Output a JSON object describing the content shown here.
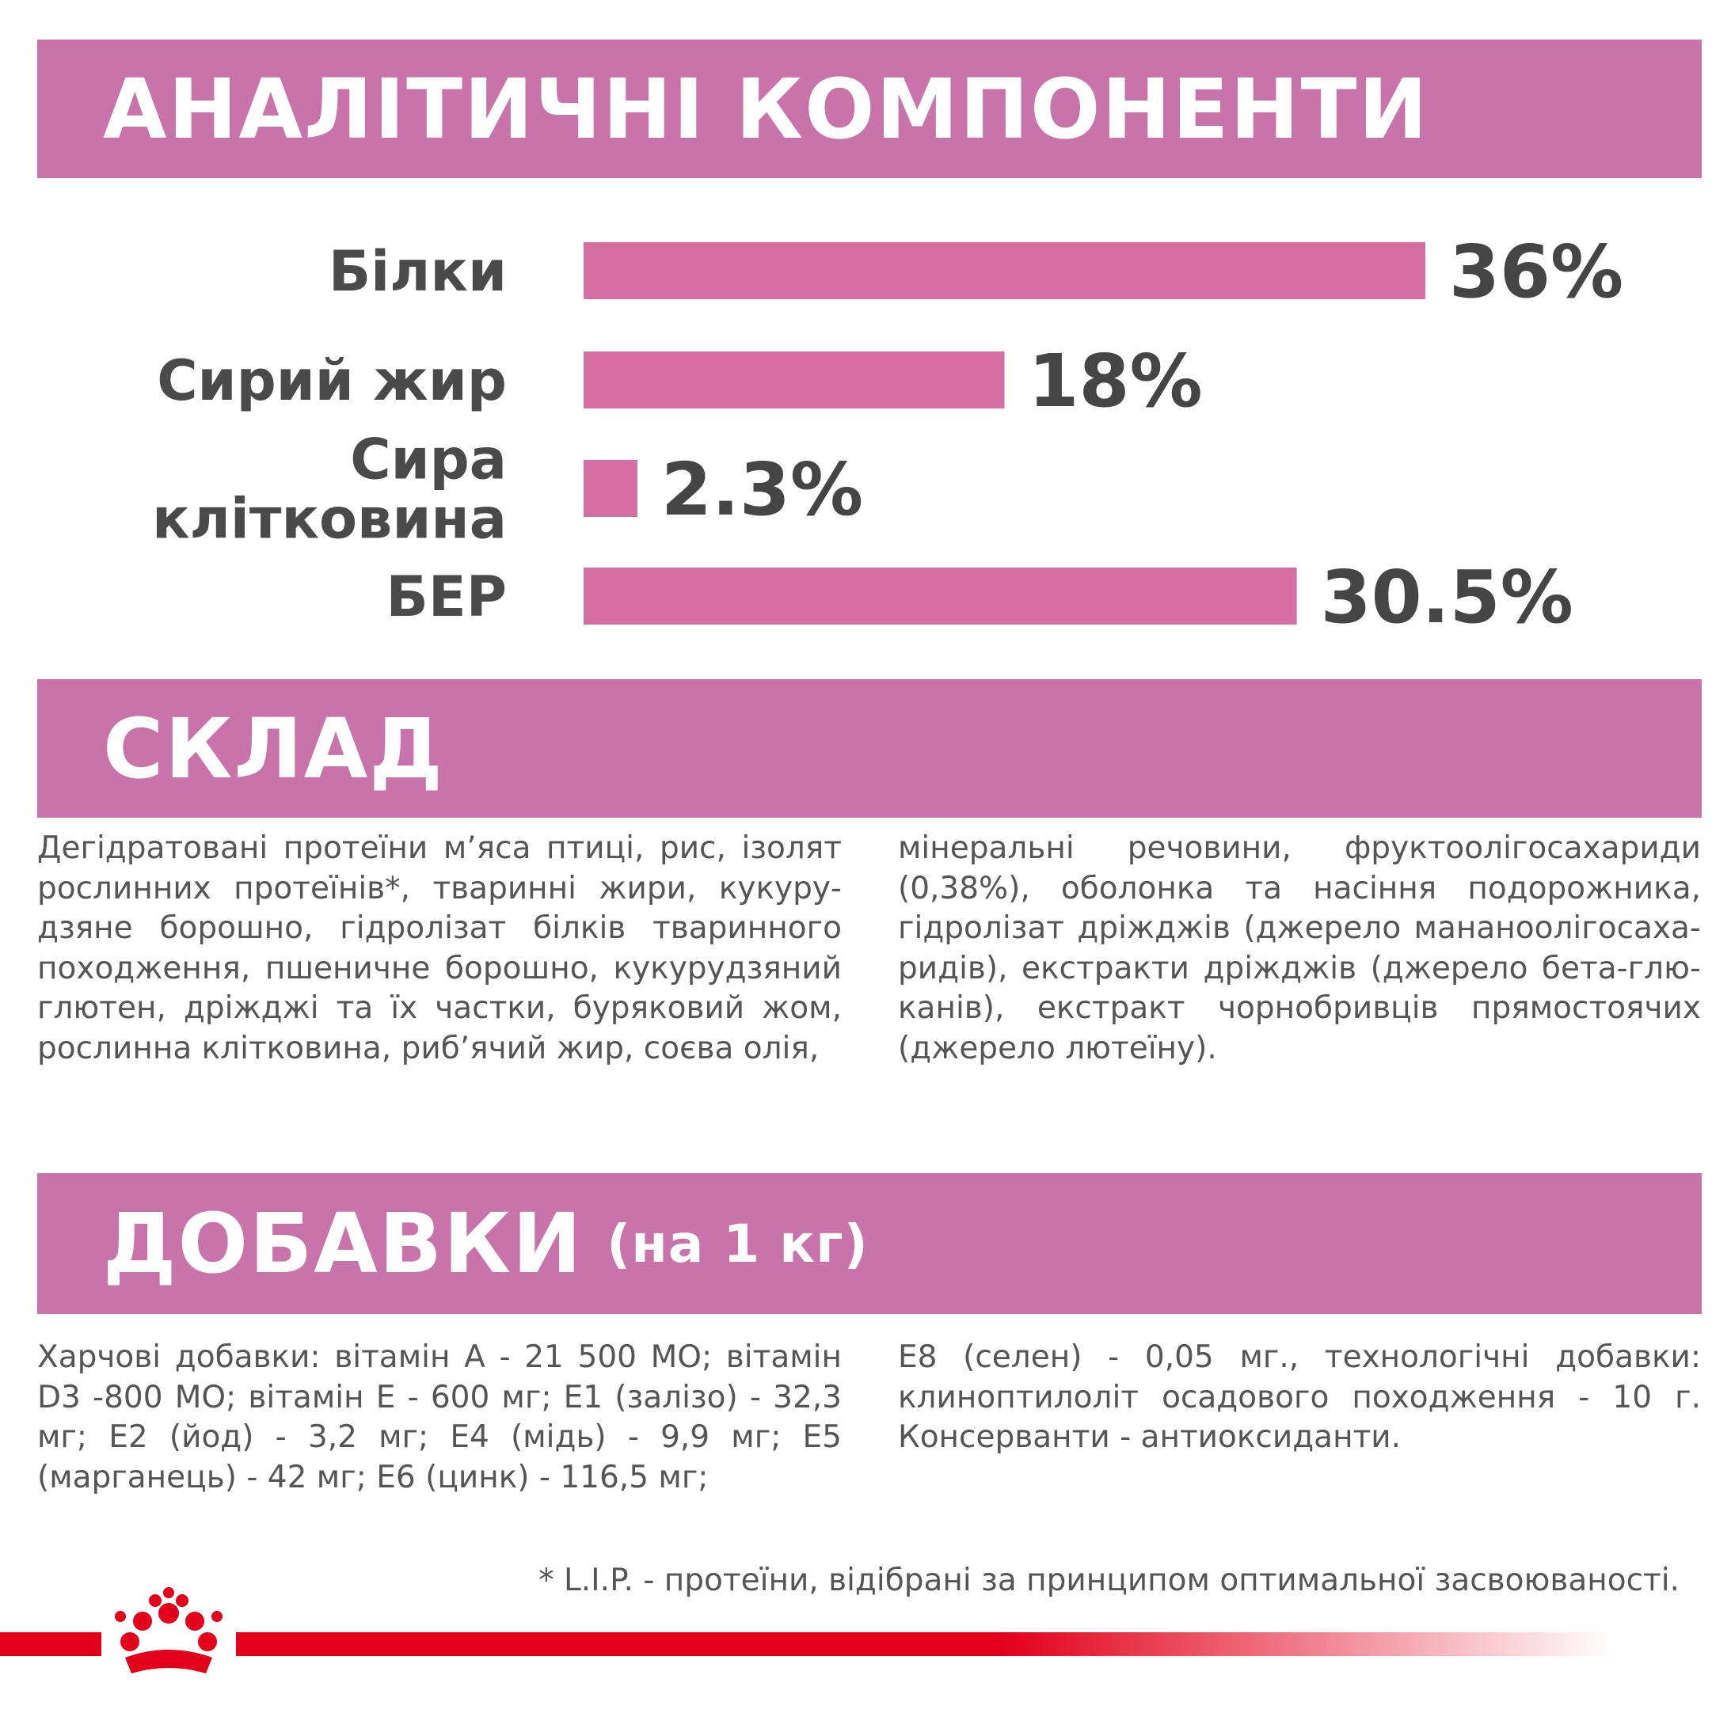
{
  "sections": {
    "analytical_title": "АНАЛІТИЧНІ КОМПОНЕНТИ",
    "composition_title": "СКЛАД",
    "additives_title": "ДОБАВКИ",
    "additives_subtitle": "(на 1 кг)"
  },
  "chart_data": {
    "type": "bar",
    "orientation": "horizontal",
    "categories": [
      [
        "Білки"
      ],
      [
        "Сирий жир"
      ],
      [
        "Сира",
        "клітковина"
      ],
      [
        "БЕР"
      ]
    ],
    "values": [
      36,
      18,
      2.3,
      30.5
    ],
    "value_labels": [
      "36%",
      "18%",
      "2.3%",
      "30.5%"
    ],
    "unit": "%",
    "xlim": [
      0,
      36
    ],
    "grid": false,
    "bar_color": "#d56fa3"
  },
  "composition": {
    "left": "Дегідратовані протеїни м’яса птиці, рис, ізолят рослинних протеїнів*, тваринні жири, кукуру- дзяне борошно, гідролізат білків тваринного походження, пшеничне борошно, кукурудзяний глютен, дріжджі та їх частки, буряковий жом, рослинна клітковина, риб’ячий жир, соєва олія,",
    "right": "мінеральні речовини, фруктоолігосахариди (0,38%), оболонка та насіння подорожника, гідролізат дріжджів (джерело мананоолігосаха- ридів), екстракти дріжджів (джерело бета-глю- канів), екстракт чорнобривців прямостоячих (джерело лютеїну)."
  },
  "additives": {
    "left": "Харчові добавки: вітамін А - 21 500 МО; вітамін D3 -800 МО; вітамін Е - 600 мг; Е1 (залізо) - 32,3 мг; Е2 (йод) - 3,2 мг; Е4 (мідь) - 9,9 мг; Е5 (марганець) - 42 мг; Е6 (цинк) - 116,5 мг;",
    "right": "Е8 (селен) - 0,05 мг., технологічні добавки: клиноптилоліт осадового походження - 10 г. Консерванти - антиоксиданти."
  },
  "footnote": "* L.I.P. - протеїни, відібрані за принципом оптимальної засвоюваності.",
  "brand": {
    "logo_icon": "royal-canin-crown-icon",
    "color": "#e2001a"
  }
}
